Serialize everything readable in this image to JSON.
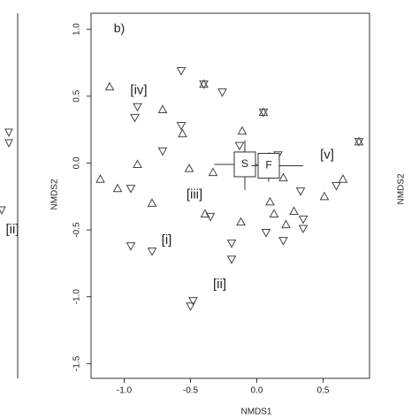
{
  "chart_data": {
    "type": "scatter",
    "panel_label": "b)",
    "x_label": "NMDS1",
    "y_label": "NMDS2",
    "xlim": [
      -1.25,
      0.85
    ],
    "ylim": [
      -1.61,
      1.12
    ],
    "xticks": [
      {
        "value": -1.0,
        "label": "-1.0"
      },
      {
        "value": -0.5,
        "label": "-0.5"
      },
      {
        "value": 0.0,
        "label": "0.0"
      },
      {
        "value": 0.5,
        "label": "0.5"
      }
    ],
    "yticks": [
      {
        "value": 1.0,
        "label": "1.0"
      },
      {
        "value": 0.5,
        "label": "0.5"
      },
      {
        "value": 0.0,
        "label": "0.0"
      },
      {
        "value": -0.5,
        "label": "-0.5"
      },
      {
        "value": -1.0,
        "label": "-1.0"
      },
      {
        "value": -1.5,
        "label": "-1.5"
      }
    ],
    "series": [
      {
        "marker": "triangle-up",
        "color": "#444444",
        "x": [
          -1.11,
          -0.71,
          -0.9,
          -1.18,
          -1.05,
          -0.79,
          -0.51,
          -0.33,
          -0.56,
          -0.11,
          -0.39,
          -0.12,
          0.2,
          0.1,
          0.28,
          0.13,
          0.22,
          0.51,
          0.65
        ],
        "y": [
          0.57,
          0.4,
          -0.01,
          -0.12,
          -0.19,
          -0.3,
          -0.04,
          -0.07,
          0.22,
          0.24,
          -0.38,
          -0.44,
          -0.11,
          -0.29,
          -0.36,
          -0.38,
          -0.46,
          -0.25,
          -0.12
        ]
      },
      {
        "marker": "triangle-down",
        "color": "#444444",
        "x": [
          -0.57,
          -0.26,
          -0.9,
          -0.92,
          -0.57,
          -0.71,
          -0.95,
          -0.35,
          -0.95,
          -0.79,
          -0.19,
          -0.19,
          -0.5,
          -0.48,
          -0.13,
          0.16,
          0.33,
          0.35,
          0.35,
          0.2,
          0.07,
          0.6
        ],
        "y": [
          0.69,
          0.53,
          0.42,
          0.34,
          0.28,
          0.09,
          -0.19,
          -0.4,
          -0.62,
          -0.66,
          -0.6,
          -0.72,
          -1.07,
          -1.03,
          0.13,
          0.06,
          -0.21,
          -0.42,
          -0.49,
          -0.58,
          -0.52,
          -0.17
        ]
      },
      {
        "marker": "star",
        "color": "#444444",
        "x": [
          -0.4,
          0.05,
          0.77
        ],
        "y": [
          0.59,
          0.38,
          0.16
        ]
      }
    ],
    "centroids": [
      {
        "label": "S",
        "x": -0.09,
        "y": -0.01,
        "x_range": [
          -0.32,
          0.14
        ],
        "y_range": [
          -0.2,
          0.17
        ]
      },
      {
        "label": "F",
        "x": 0.09,
        "y": -0.02,
        "x_range": [
          -0.04,
          0.35
        ],
        "y_range": [
          -0.14,
          0.08
        ]
      }
    ],
    "annotations": [
      {
        "text": "[i]",
        "x": -0.68,
        "y": -0.58
      },
      {
        "text": "[ii]",
        "x": -0.28,
        "y": -0.91
      },
      {
        "text": "[iii]",
        "x": -0.47,
        "y": -0.24
      },
      {
        "text": "[iv]",
        "x": -0.89,
        "y": 0.54
      },
      {
        "text": "[v]",
        "x": 0.53,
        "y": 0.06
      }
    ],
    "left_panel_fragment": "[ii]",
    "right_panel_fragment": "NMDS2"
  }
}
